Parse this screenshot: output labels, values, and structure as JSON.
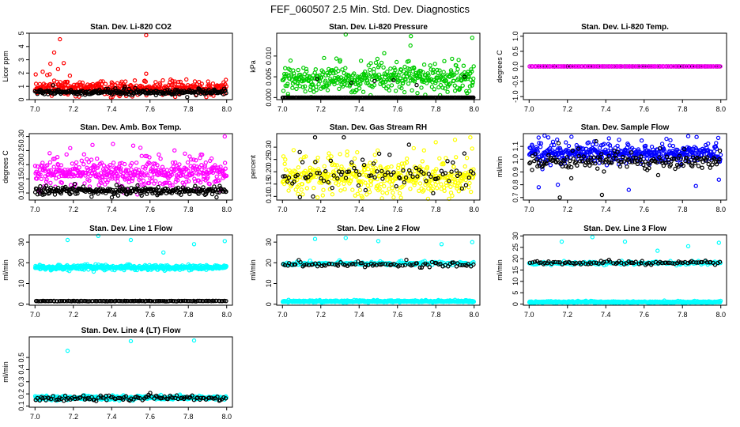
{
  "figure_title": "FEF_060507  2.5 Min. Std. Dev. Diagnostics",
  "colors": {
    "black": "#000000",
    "red": "#ff0000",
    "green": "#00cc00",
    "magenta": "#ff00ff",
    "yellow": "#ffff00",
    "blue": "#0000ff",
    "cyan": "#00ffff"
  },
  "chart_data": [
    {
      "type": "scatter",
      "id": "co2",
      "title": "Stan. Dev. Li-820 CO2",
      "xlabel": "",
      "ylabel": "Licor ppm",
      "xlim": [
        6.97,
        8.03
      ],
      "ylim": [
        0,
        5
      ],
      "xticks": [
        7.0,
        7.2,
        7.4,
        7.6,
        7.8,
        8.0
      ],
      "xtick_labels": [
        "7.0",
        "7.2",
        "7.4",
        "7.6",
        "7.8",
        "8.0"
      ],
      "yticks": [
        0,
        1,
        2,
        3,
        4,
        5
      ],
      "ytick_labels": [
        "0",
        "1",
        "2",
        "3",
        "4",
        "5"
      ],
      "series": [
        {
          "color": "red",
          "n": 420,
          "base": 0.75,
          "spread": 0.35,
          "outliers": [
            [
              7.13,
              4.55
            ],
            [
              7.1,
              3.55
            ],
            [
              7.04,
              2.1
            ],
            [
              7.08,
              2.7
            ],
            [
              7.15,
              2.75
            ],
            [
              7.12,
              2.3
            ],
            [
              7.58,
              4.85
            ],
            [
              7.58,
              1.95
            ],
            [
              7.57,
              1.4
            ],
            [
              7.4,
              1.3
            ],
            [
              7.73,
              1.2
            ],
            [
              7.33,
              1.15
            ]
          ]
        },
        {
          "color": "black",
          "n": 250,
          "base": 0.5,
          "spread": 0.15,
          "outliers": []
        }
      ]
    },
    {
      "type": "scatter",
      "id": "pressure",
      "title": "Stan. Dev. Li-820 Pressure",
      "xlabel": "",
      "ylabel": "kPa",
      "xlim": [
        6.97,
        8.03
      ],
      "ylim": [
        -0.0005,
        0.0155
      ],
      "xticks": [
        7.0,
        7.2,
        7.4,
        7.6,
        7.8,
        8.0
      ],
      "xtick_labels": [
        "7.0",
        "7.2",
        "7.4",
        "7.6",
        "7.8",
        "8.0"
      ],
      "yticks": [
        0.0,
        0.005,
        0.01
      ],
      "ytick_labels": [
        "0.000",
        "0.005",
        "0.010"
      ],
      "series": [
        {
          "color": "green",
          "n": 430,
          "base": 0.004,
          "spread": 0.0022,
          "outliers": [
            [
              7.33,
              0.0152
            ],
            [
              7.67,
              0.0148
            ],
            [
              7.99,
              0.0144
            ],
            [
              7.03,
              0.0003
            ],
            [
              7.15,
              0.0001
            ]
          ]
        },
        {
          "color": "black",
          "n": 240,
          "base": 0.0,
          "spread": 0.0,
          "outliers": [
            [
              7.18,
              0.0045
            ],
            [
              7.36,
              0.0035
            ],
            [
              7.48,
              0.004
            ],
            [
              7.7,
              0.003
            ],
            [
              7.95,
              0.005
            ],
            [
              7.58,
              0.0042
            ]
          ]
        }
      ]
    },
    {
      "type": "scatter",
      "id": "temp",
      "title": "Stan. Dev. Li-820 Temp.",
      "xlabel": "",
      "ylabel": "degrees C",
      "xlim": [
        6.97,
        8.03
      ],
      "ylim": [
        -1.1,
        1.1
      ],
      "xticks": [
        7.0,
        7.2,
        7.4,
        7.6,
        7.8,
        8.0
      ],
      "xtick_labels": [
        "7.0",
        "7.2",
        "7.4",
        "7.6",
        "7.8",
        "8.0"
      ],
      "yticks": [
        -1.0,
        -0.5,
        0.0,
        0.5,
        1.0
      ],
      "ytick_labels": [
        "-1.0",
        "-0.5",
        "0.0",
        "0.5",
        "1.0"
      ],
      "series": [
        {
          "color": "black",
          "n": 120,
          "base": 0.0,
          "spread": 0.0,
          "outliers": []
        },
        {
          "color": "magenta",
          "n": 120,
          "base": 0.0,
          "spread": 0.0,
          "outliers": []
        }
      ]
    },
    {
      "type": "scatter",
      "id": "ambbox",
      "title": "Stan. Dev. Amb. Box Temp.",
      "xlabel": "",
      "ylabel": "degrees C",
      "xlim": [
        6.97,
        8.03
      ],
      "ylim": [
        0.075,
        0.31
      ],
      "xticks": [
        7.0,
        7.2,
        7.4,
        7.6,
        7.8,
        8.0
      ],
      "xtick_labels": [
        "7.0",
        "7.2",
        "7.4",
        "7.6",
        "7.8",
        "8.0"
      ],
      "yticks": [
        0.1,
        0.15,
        0.2,
        0.25,
        0.3
      ],
      "ytick_labels": [
        "0.10",
        "0.15",
        "0.20",
        "0.25",
        "0.30"
      ],
      "series": [
        {
          "color": "magenta",
          "n": 450,
          "base": 0.16,
          "spread": 0.035,
          "outliers": [
            [
              7.99,
              0.3
            ],
            [
              7.3,
              0.27
            ],
            [
              7.55,
              0.26
            ]
          ]
        },
        {
          "color": "black",
          "n": 260,
          "base": 0.105,
          "spread": 0.01,
          "outliers": []
        }
      ]
    },
    {
      "type": "scatter",
      "id": "rh",
      "title": "Stan. Dev. Gas Stream RH",
      "xlabel": "",
      "ylabel": "percent",
      "xlim": [
        6.97,
        8.03
      ],
      "ylim": [
        0.085,
        0.355
      ],
      "xticks": [
        7.0,
        7.2,
        7.4,
        7.6,
        7.8,
        8.0
      ],
      "xtick_labels": [
        "7.0",
        "7.2",
        "7.4",
        "7.6",
        "7.8",
        "8.0"
      ],
      "yticks": [
        0.1,
        0.15,
        0.2,
        0.25,
        0.3
      ],
      "ytick_labels": [
        "0.10",
        "0.15",
        "0.20",
        "0.25",
        "0.30"
      ],
      "series": [
        {
          "color": "yellow",
          "n": 450,
          "base": 0.16,
          "spread": 0.05,
          "outliers": [
            [
              7.98,
              0.34
            ],
            [
              7.9,
              0.33
            ],
            [
              7.8,
              0.32
            ]
          ]
        },
        {
          "color": "black",
          "n": 90,
          "base": 0.17,
          "spread": 0.05,
          "outliers": [
            [
              7.17,
              0.34
            ],
            [
              7.32,
              0.34
            ],
            [
              7.66,
              0.31
            ],
            [
              7.09,
              0.28
            ]
          ]
        }
      ]
    },
    {
      "type": "scatter",
      "id": "sampleflow",
      "title": "Stan. Dev. Sample Flow",
      "xlabel": "",
      "ylabel": "ml/min",
      "xlim": [
        6.97,
        8.03
      ],
      "ylim": [
        0.68,
        1.2
      ],
      "xticks": [
        7.0,
        7.2,
        7.4,
        7.6,
        7.8,
        8.0
      ],
      "xtick_labels": [
        "7.0",
        "7.2",
        "7.4",
        "7.6",
        "7.8",
        "8.0"
      ],
      "yticks": [
        0.7,
        0.8,
        0.9,
        1.0,
        1.1
      ],
      "ytick_labels": [
        "0.7",
        "0.8",
        "0.9",
        "1.0",
        "1.1"
      ],
      "series": [
        {
          "color": "blue",
          "n": 450,
          "base": 1.03,
          "spread": 0.05,
          "outliers": [
            [
              7.05,
              0.78
            ],
            [
              7.15,
              0.8
            ],
            [
              7.52,
              0.76
            ],
            [
              7.87,
              0.79
            ],
            [
              7.99,
              0.84
            ],
            [
              7.1,
              1.17
            ],
            [
              7.83,
              1.18
            ]
          ]
        },
        {
          "color": "black",
          "n": 170,
          "base": 0.97,
          "spread": 0.05,
          "outliers": [
            [
              7.16,
              0.7
            ],
            [
              7.38,
              0.72
            ],
            [
              7.22,
              0.85
            ]
          ]
        }
      ]
    },
    {
      "type": "scatter",
      "id": "line1",
      "title": "Stan. Dev. Line 1 Flow",
      "xlabel": "",
      "ylabel": "ml/min",
      "xlim": [
        6.97,
        8.03
      ],
      "ylim": [
        -0.5,
        33.5
      ],
      "xticks": [
        7.0,
        7.2,
        7.4,
        7.6,
        7.8,
        8.0
      ],
      "xtick_labels": [
        "7.0",
        "7.2",
        "7.4",
        "7.6",
        "7.8",
        "8.0"
      ],
      "yticks": [
        0,
        10,
        20,
        30
      ],
      "ytick_labels": [
        "0",
        "10",
        "20",
        "30"
      ],
      "series": [
        {
          "color": "cyan",
          "n": 500,
          "base": 17.5,
          "spread": 0.8,
          "outliers": [
            [
              7.17,
              31
            ],
            [
              7.33,
              33
            ],
            [
              7.5,
              31
            ],
            [
              7.67,
              25
            ],
            [
              7.83,
              29
            ],
            [
              7.99,
              30.5
            ]
          ]
        },
        {
          "color": "black",
          "n": 130,
          "base": 1.5,
          "spread": 0.1,
          "outliers": []
        }
      ]
    },
    {
      "type": "scatter",
      "id": "line2",
      "title": "Stan. Dev. Line 2 Flow",
      "xlabel": "",
      "ylabel": "ml/min",
      "xlim": [
        6.97,
        8.03
      ],
      "ylim": [
        -0.5,
        33.5
      ],
      "xticks": [
        7.0,
        7.2,
        7.4,
        7.6,
        7.8,
        8.0
      ],
      "xtick_labels": [
        "7.0",
        "7.2",
        "7.4",
        "7.6",
        "7.8",
        "8.0"
      ],
      "yticks": [
        0,
        10,
        20,
        30
      ],
      "ytick_labels": [
        "0",
        "10",
        "20",
        "30"
      ],
      "series": [
        {
          "color": "cyan",
          "n": 450,
          "base": 1.3,
          "spread": 0.3,
          "outliers": [
            [
              7.17,
              31.5
            ],
            [
              7.33,
              32
            ],
            [
              7.5,
              30.5
            ],
            [
              7.83,
              29
            ],
            [
              7.99,
              30
            ]
          ]
        },
        {
          "color": "cyan",
          "n": 160,
          "base": 19.5,
          "spread": 0.6,
          "outliers": []
        },
        {
          "color": "black",
          "n": 90,
          "base": 18.8,
          "spread": 0.8,
          "outliers": []
        }
      ]
    },
    {
      "type": "scatter",
      "id": "line3",
      "title": "Stan. Dev. Line 3 Flow",
      "xlabel": "",
      "ylabel": "ml/min",
      "xlim": [
        6.97,
        8.03
      ],
      "ylim": [
        -0.5,
        30.5
      ],
      "xticks": [
        7.0,
        7.2,
        7.4,
        7.6,
        7.8,
        8.0
      ],
      "xtick_labels": [
        "7.0",
        "7.2",
        "7.4",
        "7.6",
        "7.8",
        "8.0"
      ],
      "yticks": [
        0,
        5,
        10,
        15,
        20,
        25,
        30
      ],
      "ytick_labels": [
        "0",
        "5",
        "10",
        "15",
        "20",
        "25",
        "30"
      ],
      "series": [
        {
          "color": "cyan",
          "n": 450,
          "base": 0.8,
          "spread": 0.25,
          "outliers": [
            [
              7.17,
              27.5
            ],
            [
              7.33,
              29.5
            ],
            [
              7.5,
              27.5
            ],
            [
              7.67,
              23.5
            ],
            [
              7.83,
              25.5
            ],
            [
              7.99,
              27
            ]
          ]
        },
        {
          "color": "cyan",
          "n": 150,
          "base": 17.8,
          "spread": 0.5,
          "outliers": []
        },
        {
          "color": "black",
          "n": 90,
          "base": 18.0,
          "spread": 0.6,
          "outliers": []
        }
      ]
    },
    {
      "type": "scatter",
      "id": "line4",
      "title": "Stan. Dev. Line 4 (LT) Flow",
      "xlabel": "",
      "ylabel": "ml/min",
      "xlim": [
        6.97,
        8.03
      ],
      "ylim": [
        0.09,
        0.67
      ],
      "xticks": [
        7.0,
        7.2,
        7.4,
        7.6,
        7.8,
        8.0
      ],
      "xtick_labels": [
        "7.0",
        "7.2",
        "7.4",
        "7.6",
        "7.8",
        "8.0"
      ],
      "yticks": [
        0.1,
        0.2,
        0.3,
        0.4,
        0.5
      ],
      "ytick_labels": [
        "0.1",
        "0.2",
        "0.3",
        "0.4",
        "0.5"
      ],
      "series": [
        {
          "color": "cyan",
          "n": 500,
          "base": 0.165,
          "spread": 0.01,
          "outliers": [
            [
              7.17,
              0.555
            ],
            [
              7.5,
              0.635
            ],
            [
              7.83,
              0.64
            ]
          ]
        },
        {
          "color": "black",
          "n": 110,
          "base": 0.16,
          "spread": 0.015,
          "outliers": []
        }
      ]
    }
  ]
}
